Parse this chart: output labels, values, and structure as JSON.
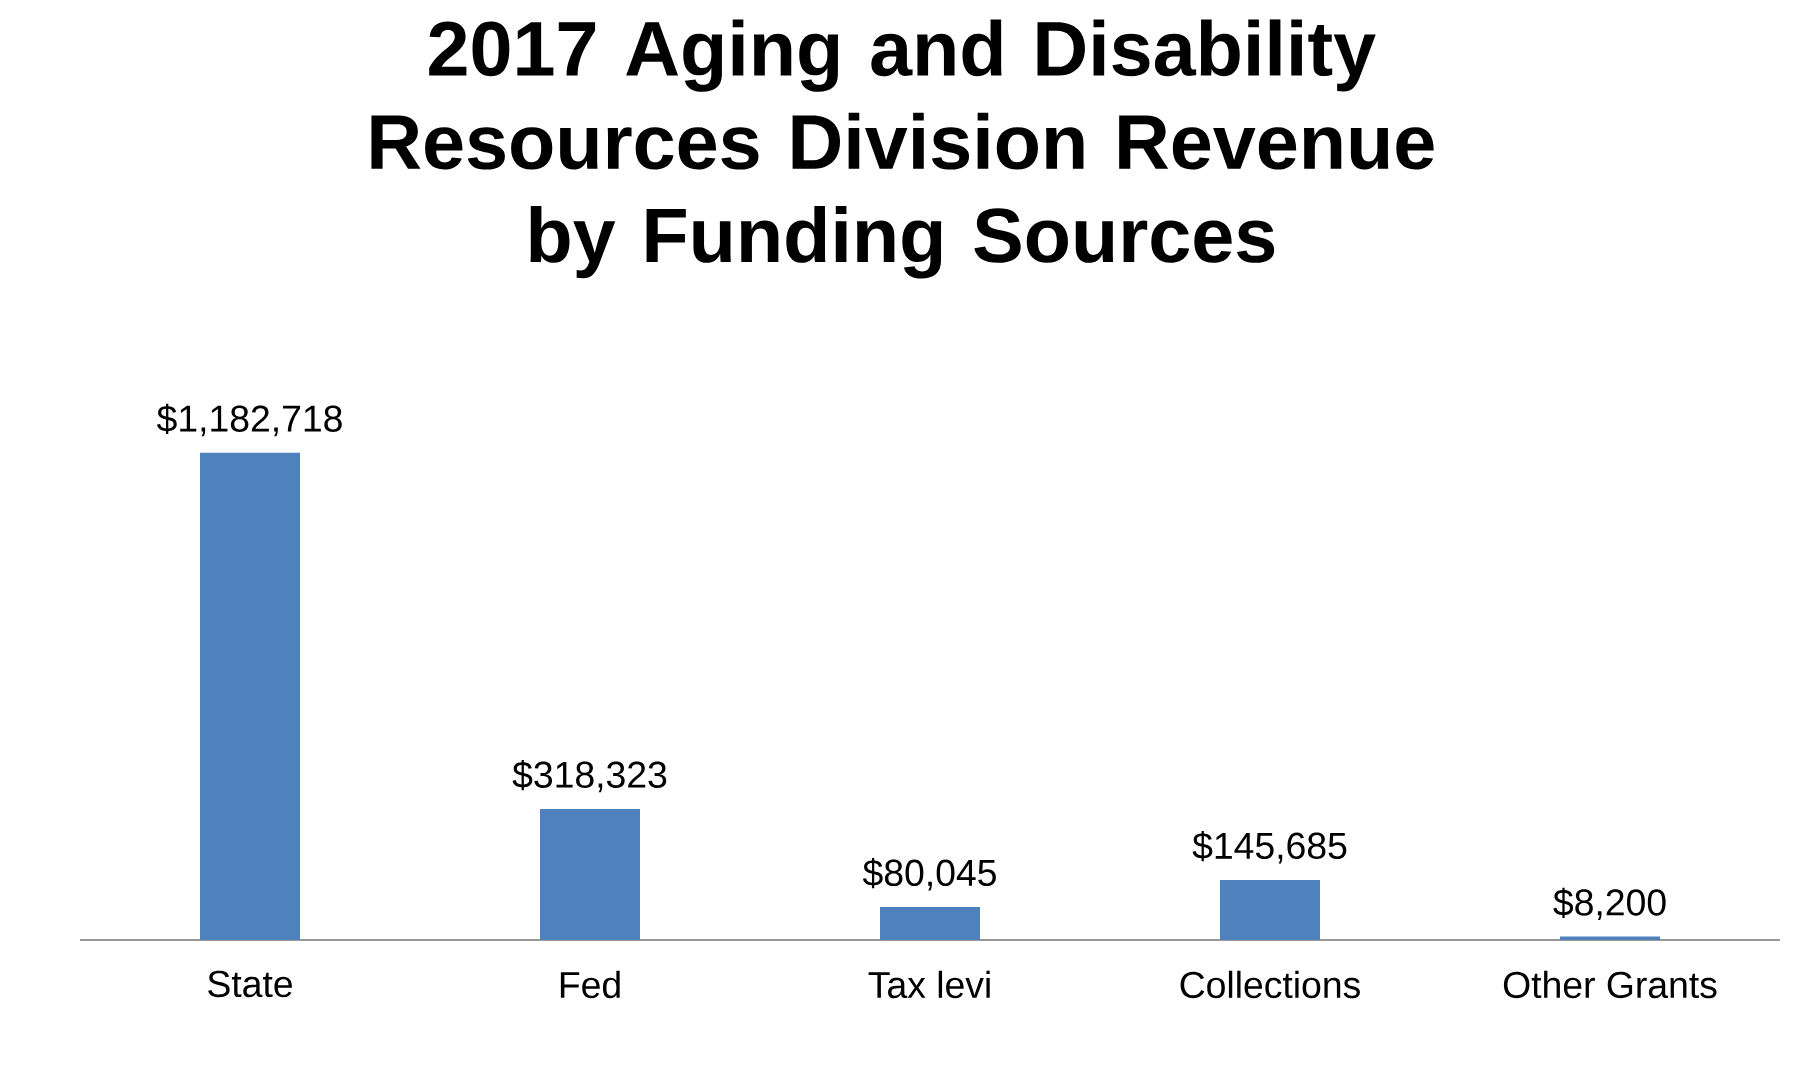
{
  "chart_data": {
    "type": "bar",
    "title": "2017 Aging and Disability Resources Division Revenue by Funding Sources",
    "categories": [
      "State",
      "Fed",
      "Tax levi",
      "Collections",
      "Other Grants"
    ],
    "values": [
      1182718,
      318323,
      80045,
      145685,
      8200
    ],
    "value_labels": [
      "$1,182,718",
      "$318,323",
      "$80,045",
      "$145,685",
      "$8,200"
    ],
    "color": "#4f81bd"
  }
}
